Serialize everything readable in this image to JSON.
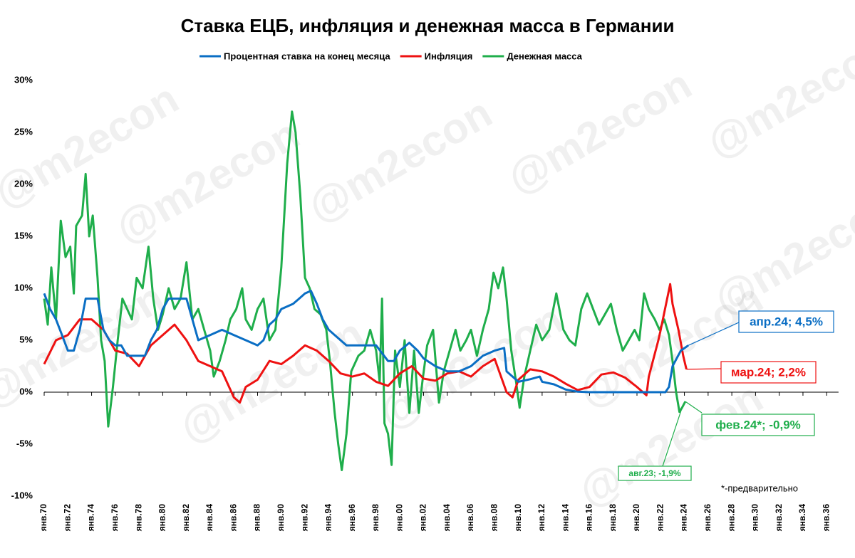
{
  "chart_data": {
    "type": "line",
    "title": "Ставка ЕЦБ, инфляция и денежная масса в Германии",
    "watermark": "@m2econ",
    "footnote": "*-предварительно",
    "xlim": [
      1970,
      2037
    ],
    "xticks": [
      {
        "value": 1970,
        "label": "янв.70"
      },
      {
        "value": 1972,
        "label": "янв.72"
      },
      {
        "value": 1974,
        "label": "янв.74"
      },
      {
        "value": 1976,
        "label": "янв.76"
      },
      {
        "value": 1978,
        "label": "янв.78"
      },
      {
        "value": 1980,
        "label": "янв.80"
      },
      {
        "value": 1982,
        "label": "янв.82"
      },
      {
        "value": 1984,
        "label": "янв.84"
      },
      {
        "value": 1986,
        "label": "янв.86"
      },
      {
        "value": 1988,
        "label": "янв.88"
      },
      {
        "value": 1990,
        "label": "янв.90"
      },
      {
        "value": 1992,
        "label": "янв.92"
      },
      {
        "value": 1994,
        "label": "янв.94"
      },
      {
        "value": 1996,
        "label": "янв.96"
      },
      {
        "value": 1998,
        "label": "янв.98"
      },
      {
        "value": 2000,
        "label": "янв.00"
      },
      {
        "value": 2002,
        "label": "янв.02"
      },
      {
        "value": 2004,
        "label": "янв.04"
      },
      {
        "value": 2006,
        "label": "янв.06"
      },
      {
        "value": 2008,
        "label": "янв.08"
      },
      {
        "value": 2010,
        "label": "янв.10"
      },
      {
        "value": 2012,
        "label": "янв.12"
      },
      {
        "value": 2014,
        "label": "янв.14"
      },
      {
        "value": 2016,
        "label": "янв.16"
      },
      {
        "value": 2018,
        "label": "янв.18"
      },
      {
        "value": 2020,
        "label": "янв.20"
      },
      {
        "value": 2022,
        "label": "янв.22"
      },
      {
        "value": 2024,
        "label": "янв.24"
      },
      {
        "value": 2026,
        "label": "янв.26"
      },
      {
        "value": 2028,
        "label": "янв.28"
      },
      {
        "value": 2030,
        "label": "янв.30"
      },
      {
        "value": 2032,
        "label": "янв.32"
      },
      {
        "value": 2034,
        "label": "янв.34"
      },
      {
        "value": 2036,
        "label": "янв.36"
      }
    ],
    "ylim": [
      -10,
      30
    ],
    "yticks": [
      {
        "value": 30,
        "label": "30%"
      },
      {
        "value": 25,
        "label": "25%"
      },
      {
        "value": 20,
        "label": "20%"
      },
      {
        "value": 15,
        "label": "15%"
      },
      {
        "value": 10,
        "label": "10%"
      },
      {
        "value": 5,
        "label": "5%"
      },
      {
        "value": 0,
        "label": "0%"
      },
      {
        "value": -5,
        "label": "-5%"
      },
      {
        "value": -10,
        "label": "-10%"
      }
    ],
    "grid": false,
    "series": [
      {
        "name": "Процентная ставка на конец месяца",
        "color": "#0a6ec4",
        "x": [
          1970,
          1970.5,
          1971,
          1971.5,
          1972,
          1972.5,
          1973,
          1973.5,
          1974,
          1974.5,
          1975,
          1975.5,
          1976,
          1976.5,
          1977,
          1977.5,
          1978,
          1978.5,
          1979,
          1979.5,
          1980,
          1980.5,
          1981,
          1982,
          1982.5,
          1983,
          1984,
          1985,
          1986,
          1987,
          1988,
          1988.5,
          1989,
          1989.5,
          1990,
          1991,
          1991.5,
          1992,
          1992.5,
          1993,
          1993.5,
          1994,
          1994.5,
          1995,
          1995.5,
          1996,
          1998,
          1999,
          1999.5,
          2000,
          2000.8,
          2001.5,
          2002,
          2003,
          2004,
          2005,
          2006,
          2007,
          2008,
          2008.8,
          2009,
          2010,
          2011,
          2011.8,
          2012,
          2013,
          2014,
          2015,
          2016,
          2022.4,
          2022.7,
          2023,
          2023.7,
          2024.33
        ],
        "values": [
          9.5,
          8,
          7,
          5.5,
          4,
          4,
          6,
          9,
          9,
          9,
          6,
          5,
          4.5,
          4.5,
          3.5,
          3.5,
          3.5,
          3.5,
          5,
          6,
          8,
          9,
          9,
          9,
          7,
          5,
          5.5,
          6,
          5.5,
          5,
          4.5,
          5,
          6.5,
          7,
          8,
          8.5,
          9,
          9.5,
          9.75,
          8.5,
          7,
          6,
          5.5,
          5,
          4.5,
          4.5,
          4.5,
          3,
          3,
          4,
          4.75,
          4,
          3.25,
          2.5,
          2,
          2,
          2.5,
          3.5,
          4,
          4.25,
          2,
          1,
          1.25,
          1.5,
          1,
          0.75,
          0.25,
          0.05,
          0,
          0,
          0.5,
          2.5,
          4,
          4.5
        ]
      },
      {
        "name": "Инфляция",
        "color": "#ee1111",
        "x": [
          1970,
          1971,
          1972,
          1973,
          1974,
          1975,
          1976,
          1977,
          1978,
          1979,
          1980,
          1981,
          1982,
          1983,
          1984,
          1985,
          1986,
          1986.5,
          1987,
          1988,
          1989,
          1990,
          1991,
          1992,
          1993,
          1994,
          1995,
          1996,
          1997,
          1998,
          1999,
          2000,
          2001,
          2002,
          2003,
          2004,
          2005,
          2006,
          2007,
          2008,
          2009,
          2009.5,
          2010,
          2011,
          2012,
          2013,
          2014,
          2015,
          2016,
          2017,
          2018,
          2019,
          2020,
          2020.8,
          2021,
          2021.8,
          2022,
          2022.8,
          2023,
          2023.5,
          2023.9,
          2024.17
        ],
        "values": [
          2.7,
          5,
          5.5,
          7,
          7,
          6,
          4,
          3.7,
          2.5,
          4.5,
          5.5,
          6.5,
          5,
          3,
          2.5,
          2,
          -0.5,
          -1,
          0.5,
          1.2,
          3,
          2.7,
          3.5,
          4.5,
          4,
          3,
          1.8,
          1.5,
          1.8,
          1,
          0.6,
          1.8,
          2.5,
          1.3,
          1.1,
          1.8,
          2,
          1.5,
          2.5,
          3.2,
          0,
          -0.5,
          1.2,
          2.2,
          2,
          1.5,
          0.8,
          0.2,
          0.5,
          1.7,
          1.9,
          1.4,
          0.5,
          -0.3,
          1.5,
          5,
          6,
          10.4,
          8.5,
          6,
          3.5,
          2.2
        ]
      },
      {
        "name": "Денежная масса",
        "color": "#1fae4b",
        "x": [
          1970,
          1970.3,
          1970.6,
          1971,
          1971.4,
          1971.8,
          1972.2,
          1972.5,
          1972.7,
          1973.2,
          1973.5,
          1973.8,
          1974.1,
          1974.5,
          1974.8,
          1975.1,
          1975.4,
          1975.8,
          1976.2,
          1976.6,
          1977,
          1977.4,
          1977.8,
          1978.3,
          1978.8,
          1979.2,
          1979.6,
          1980,
          1980.5,
          1981,
          1981.5,
          1982,
          1982.5,
          1983,
          1983.5,
          1984,
          1984.3,
          1984.8,
          1985.3,
          1985.7,
          1986.2,
          1986.7,
          1987,
          1987.5,
          1988,
          1988.5,
          1989,
          1989.5,
          1990,
          1990.5,
          1990.9,
          1991.2,
          1991.6,
          1992,
          1992.4,
          1992.8,
          1993.3,
          1993.8,
          1994.1,
          1994.5,
          1994.8,
          1995.1,
          1995.5,
          1995.9,
          1996.5,
          1997,
          1997.5,
          1998,
          1998.3,
          1998.5,
          1998.7,
          1999,
          1999.3,
          1999.6,
          2000,
          2000.4,
          2000.8,
          2001.2,
          2001.6,
          2001.9,
          2002.3,
          2002.8,
          2003.3,
          2003.7,
          2004.2,
          2004.7,
          2005.1,
          2005.6,
          2006,
          2006.5,
          2007,
          2007.5,
          2007.9,
          2008.3,
          2008.7,
          2009,
          2009.4,
          2009.8,
          2010.1,
          2010.5,
          2011,
          2011.5,
          2012,
          2012.6,
          2013.2,
          2013.8,
          2014.3,
          2014.8,
          2015.3,
          2015.8,
          2016.3,
          2016.8,
          2017.3,
          2017.8,
          2018.3,
          2018.8,
          2019.3,
          2019.8,
          2020.2,
          2020.6,
          2021,
          2021.5,
          2021.9,
          2022.3,
          2022.7,
          2023,
          2023.3,
          2023.58,
          2023.8,
          2024.08
        ],
        "values": [
          9,
          6.5,
          12,
          7,
          16.5,
          13,
          14,
          9.5,
          16,
          17,
          21,
          15,
          17,
          11,
          5,
          3,
          -3.3,
          0.5,
          5,
          9,
          8,
          7,
          11,
          10,
          14,
          9,
          6,
          7.5,
          10,
          8,
          9,
          12.5,
          7,
          8,
          6,
          4,
          1.5,
          3,
          5,
          7,
          8,
          10,
          7,
          6,
          8,
          9,
          5,
          6,
          12,
          22,
          27,
          25,
          19,
          11,
          10,
          8,
          7.5,
          6,
          3,
          -2,
          -5,
          -7.5,
          -4,
          2,
          3.5,
          4,
          6,
          4,
          1,
          9,
          -3,
          -4,
          -7,
          4,
          0.5,
          5,
          -2,
          4,
          -2,
          1,
          4.5,
          6,
          -1,
          2,
          4,
          6,
          4,
          5,
          6,
          3.5,
          6,
          8,
          11.5,
          10,
          12,
          9,
          4,
          1,
          -1.5,
          1.5,
          4,
          6.5,
          5,
          6,
          9.5,
          6,
          5,
          4.5,
          8,
          9.5,
          8,
          6.5,
          7.5,
          8.5,
          6,
          4,
          5,
          6,
          5,
          9.5,
          8,
          7,
          6,
          7,
          5.5,
          3,
          0,
          -1.9,
          -1.5,
          -0.9
        ]
      }
    ],
    "annotations": [
      {
        "text": "апр.24; 4,5%",
        "series": 0
      },
      {
        "text": "мар.24; 2,2%",
        "series": 1
      },
      {
        "text": "фев.24*; -0,9%",
        "series": 2
      },
      {
        "text": "авг.23; -1,9%",
        "series": 2
      }
    ]
  }
}
